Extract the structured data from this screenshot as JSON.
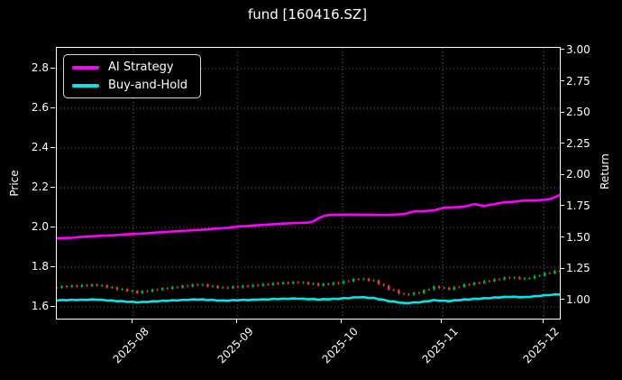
{
  "title": "fund [160416.SZ]",
  "legend": {
    "items": [
      {
        "label": "AI Strategy",
        "color": "#ff00ff"
      },
      {
        "label": "Buy-and-Hold",
        "color": "#00e5e5"
      }
    ]
  },
  "colors": {
    "background": "#000000",
    "text": "#ffffff",
    "grid": "rgba(255,255,255,0.55)",
    "spine": "#ffffff",
    "ai_strategy": "#ff00ff",
    "buy_and_hold": "#00e5e5",
    "candle_up": "#00b33c",
    "candle_down": "#e23a3a"
  },
  "chart_data": {
    "type": "candlestick",
    "title": "fund [160416.SZ]",
    "background": "#000000",
    "grid": true,
    "legend_position": "upper left",
    "x_axis": {
      "tick_labels": [
        "2025-08",
        "2025-09",
        "2025-10",
        "2025-11",
        "2025-12"
      ],
      "tick_day_index": [
        15.2,
        36.0,
        56.8,
        76.7,
        96.8
      ],
      "num_days": 101
    },
    "price_axis": {
      "label": "Price",
      "ticks": [
        1.6,
        1.8,
        2.0,
        2.2,
        2.4,
        2.6,
        2.8
      ],
      "range": [
        1.54,
        2.93
      ]
    },
    "return_axis": {
      "label": "Return",
      "ticks": [
        1.0,
        1.25,
        1.5,
        1.75,
        2.0,
        2.25,
        2.5,
        2.75,
        3.0
      ],
      "range": [
        0.85,
        3.02
      ]
    },
    "candles": {
      "first_open": 1.7,
      "wick_extent": 0.006,
      "up_color": "#00b33c",
      "down_color": "#e23a3a",
      "closes": [
        1.697,
        1.705,
        1.7,
        1.708,
        1.702,
        1.71,
        1.705,
        1.713,
        1.707,
        1.709,
        1.697,
        1.699,
        1.687,
        1.69,
        1.678,
        1.681,
        1.669,
        1.68,
        1.677,
        1.688,
        1.685,
        1.695,
        1.691,
        1.701,
        1.697,
        1.707,
        1.703,
        1.713,
        1.709,
        1.713,
        1.702,
        1.706,
        1.695,
        1.699,
        1.694,
        1.703,
        1.698,
        1.707,
        1.702,
        1.711,
        1.706,
        1.716,
        1.711,
        1.72,
        1.715,
        1.723,
        1.718,
        1.726,
        1.721,
        1.724,
        1.714,
        1.718,
        1.707,
        1.717,
        1.712,
        1.722,
        1.717,
        1.73,
        1.728,
        1.741,
        1.739,
        1.742,
        1.731,
        1.734,
        1.714,
        1.707,
        1.687,
        1.684,
        1.667,
        1.664,
        1.661,
        1.672,
        1.669,
        1.685,
        1.688,
        1.704,
        1.694,
        1.697,
        1.687,
        1.701,
        1.7,
        1.714,
        1.711,
        1.722,
        1.719,
        1.731,
        1.728,
        1.74,
        1.737,
        1.748,
        1.745,
        1.749,
        1.74,
        1.744,
        1.744,
        1.757,
        1.757,
        1.77,
        1.769,
        1.782,
        1.779
      ]
    },
    "series": [
      {
        "name": "AI Strategy",
        "axis": "return",
        "color": "#ff00ff",
        "values": [
          1.497,
          1.498,
          1.499,
          1.5,
          1.504,
          1.508,
          1.51,
          1.513,
          1.515,
          1.517,
          1.518,
          1.52,
          1.523,
          1.525,
          1.528,
          1.53,
          1.532,
          1.535,
          1.537,
          1.54,
          1.543,
          1.545,
          1.548,
          1.551,
          1.553,
          1.556,
          1.558,
          1.561,
          1.563,
          1.566,
          1.569,
          1.572,
          1.575,
          1.577,
          1.58,
          1.585,
          1.59,
          1.593,
          1.595,
          1.598,
          1.601,
          1.603,
          1.606,
          1.609,
          1.611,
          1.614,
          1.616,
          1.618,
          1.62,
          1.621,
          1.622,
          1.632,
          1.656,
          1.674,
          1.683,
          1.685,
          1.685,
          1.686,
          1.686,
          1.686,
          1.685,
          1.685,
          1.685,
          1.685,
          1.684,
          1.684,
          1.684,
          1.686,
          1.688,
          1.69,
          1.7,
          1.713,
          1.713,
          1.714,
          1.717,
          1.72,
          1.731,
          1.742,
          1.743,
          1.744,
          1.747,
          1.75,
          1.76,
          1.77,
          1.763,
          1.756,
          1.763,
          1.77,
          1.778,
          1.785,
          1.787,
          1.79,
          1.795,
          1.8,
          1.8,
          1.8,
          1.802,
          1.805,
          1.81,
          1.825,
          1.843
        ]
      },
      {
        "name": "Buy-and-Hold",
        "axis": "return",
        "color": "#00e5e5",
        "values": [
          0.998,
          1.003,
          1.0,
          1.005,
          1.001,
          1.006,
          1.003,
          1.008,
          1.004,
          1.005,
          0.998,
          0.999,
          0.992,
          0.994,
          0.987,
          0.989,
          0.982,
          0.988,
          0.986,
          0.993,
          0.991,
          0.997,
          0.995,
          1.001,
          0.998,
          1.004,
          1.002,
          1.008,
          1.005,
          1.008,
          1.001,
          1.004,
          0.997,
          0.999,
          0.996,
          1.002,
          0.999,
          1.004,
          1.001,
          1.006,
          1.004,
          1.009,
          1.006,
          1.012,
          1.009,
          1.014,
          1.011,
          1.015,
          1.012,
          1.014,
          1.008,
          1.011,
          1.004,
          1.01,
          1.007,
          1.013,
          1.01,
          1.018,
          1.016,
          1.024,
          1.023,
          1.025,
          1.018,
          1.02,
          1.008,
          1.004,
          0.992,
          0.991,
          0.981,
          0.979,
          0.977,
          0.984,
          0.982,
          0.991,
          0.993,
          1.002,
          0.996,
          0.998,
          0.992,
          1.001,
          1.0,
          1.008,
          1.006,
          1.013,
          1.011,
          1.018,
          1.016,
          1.024,
          1.022,
          1.028,
          1.026,
          1.029,
          1.024,
          1.026,
          1.026,
          1.034,
          1.034,
          1.041,
          1.041,
          1.048,
          1.046
        ]
      }
    ]
  }
}
